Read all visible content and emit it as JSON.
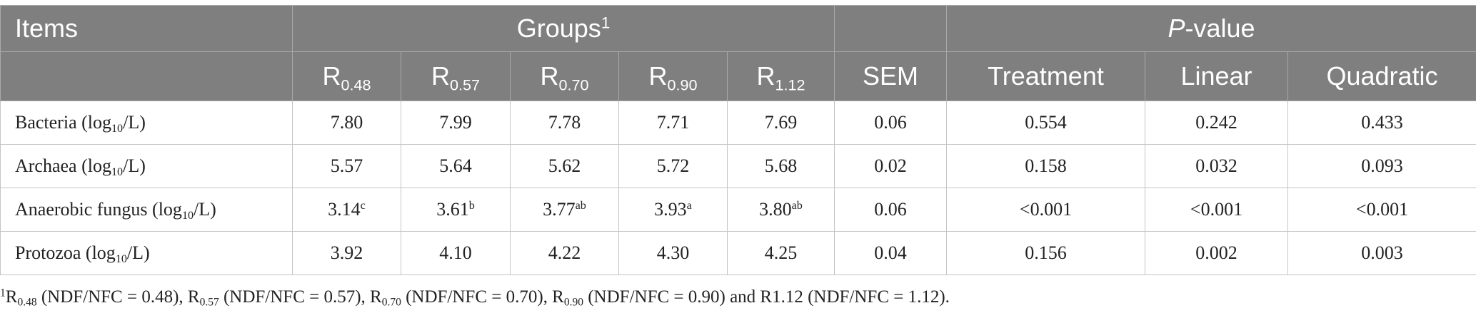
{
  "table": {
    "header_row1": {
      "items": "Items",
      "groups": {
        "text": "Groups",
        "sup": "1"
      },
      "pvalue": {
        "italic": "P",
        "text": "-value"
      }
    },
    "header_row2": [
      {
        "base": "R",
        "sub": "0.48"
      },
      {
        "base": "R",
        "sub": "0.57"
      },
      {
        "base": "R",
        "sub": "0.70"
      },
      {
        "base": "R",
        "sub": "0.90"
      },
      {
        "base": "R",
        "sub": "1.12"
      },
      "SEM",
      "Treatment",
      "Linear",
      "Quadratic"
    ],
    "rows": [
      {
        "label": {
          "pre": "Bacteria (log",
          "sub": "10",
          "post": "/L)"
        },
        "cells": [
          "7.80",
          "7.99",
          "7.78",
          "7.71",
          "7.69",
          "0.06",
          "0.554",
          "0.242",
          "0.433"
        ]
      },
      {
        "label": {
          "pre": "Archaea (log",
          "sub": "10",
          "post": "/L)"
        },
        "cells": [
          "5.57",
          "5.64",
          "5.62",
          "5.72",
          "5.68",
          "0.02",
          "0.158",
          "0.032",
          "0.093"
        ]
      },
      {
        "label": {
          "pre": "Anaerobic fungus (log",
          "sub": "10",
          "post": "/L)"
        },
        "cells": [
          {
            "value": "3.14",
            "sup": "c"
          },
          {
            "value": "3.61",
            "sup": "b"
          },
          {
            "value": "3.77",
            "sup": "ab"
          },
          {
            "value": "3.93",
            "sup": "a"
          },
          {
            "value": "3.80",
            "sup": "ab"
          },
          "0.06",
          "<0.001",
          "<0.001",
          "<0.001"
        ]
      },
      {
        "label": {
          "pre": "Protozoa (log",
          "sub": "10",
          "post": "/L)"
        },
        "cells": [
          "3.92",
          "4.10",
          "4.22",
          "4.30",
          "4.25",
          "0.04",
          "0.156",
          "0.002",
          "0.003"
        ]
      }
    ]
  },
  "footnote": [
    {
      "sup": "1"
    },
    {
      "text": "R"
    },
    {
      "sub": "0.48"
    },
    {
      "text": " (NDF/NFC = 0.48), R"
    },
    {
      "sub": "0.57"
    },
    {
      "text": " (NDF/NFC = 0.57), R"
    },
    {
      "sub": "0.70"
    },
    {
      "text": " (NDF/NFC = 0.70), R"
    },
    {
      "sub": "0.90"
    },
    {
      "text": " (NDF/NFC = 0.90) and R1.12 (NDF/NFC = 1.12)."
    }
  ]
}
